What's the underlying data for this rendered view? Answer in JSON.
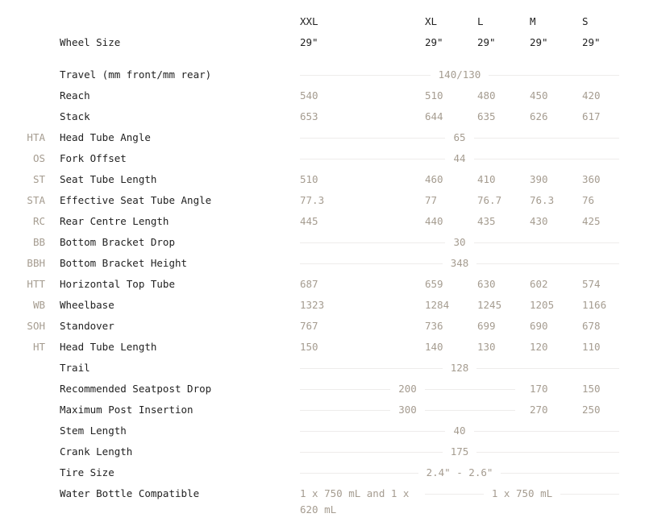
{
  "colors": {
    "label": "#222222",
    "value": "#a59c90",
    "rule": "#eeeceb"
  },
  "sizes": [
    "XXL",
    "XL",
    "L",
    "M",
    "S"
  ],
  "rows": [
    {
      "abbr": "",
      "label": "Wheel Size",
      "dark": true,
      "cells": [
        {
          "value": "29\"",
          "span": 1
        },
        {
          "value": "29\"",
          "span": 1
        },
        {
          "value": "29\"",
          "span": 1
        },
        {
          "value": "29\"",
          "span": 1
        },
        {
          "value": "29\"",
          "span": 1
        }
      ]
    },
    {
      "abbr": "",
      "label": "Travel (mm front/mm rear)",
      "cells": [
        {
          "value": "140/130",
          "span": 5
        }
      ]
    },
    {
      "abbr": "",
      "label": "Reach",
      "cells": [
        {
          "value": "540",
          "span": 1
        },
        {
          "value": "510",
          "span": 1
        },
        {
          "value": "480",
          "span": 1
        },
        {
          "value": "450",
          "span": 1
        },
        {
          "value": "420",
          "span": 1
        }
      ]
    },
    {
      "abbr": "",
      "label": "Stack",
      "cells": [
        {
          "value": "653",
          "span": 1
        },
        {
          "value": "644",
          "span": 1
        },
        {
          "value": "635",
          "span": 1
        },
        {
          "value": "626",
          "span": 1
        },
        {
          "value": "617",
          "span": 1
        }
      ]
    },
    {
      "abbr": "HTA",
      "label": "Head Tube Angle",
      "cells": [
        {
          "value": "65",
          "span": 5
        }
      ]
    },
    {
      "abbr": "OS",
      "label": "Fork Offset",
      "cells": [
        {
          "value": "44",
          "span": 5
        }
      ]
    },
    {
      "abbr": "ST",
      "label": "Seat Tube Length",
      "cells": [
        {
          "value": "510",
          "span": 1
        },
        {
          "value": "460",
          "span": 1
        },
        {
          "value": "410",
          "span": 1
        },
        {
          "value": "390",
          "span": 1
        },
        {
          "value": "360",
          "span": 1
        }
      ]
    },
    {
      "abbr": "STA",
      "label": "Effective Seat Tube Angle",
      "cells": [
        {
          "value": "77.3",
          "span": 1
        },
        {
          "value": "77",
          "span": 1
        },
        {
          "value": "76.7",
          "span": 1
        },
        {
          "value": "76.3",
          "span": 1
        },
        {
          "value": "76",
          "span": 1
        }
      ]
    },
    {
      "abbr": "RC",
      "label": "Rear Centre Length",
      "cells": [
        {
          "value": "445",
          "span": 1
        },
        {
          "value": "440",
          "span": 1
        },
        {
          "value": "435",
          "span": 1
        },
        {
          "value": "430",
          "span": 1
        },
        {
          "value": "425",
          "span": 1
        }
      ]
    },
    {
      "abbr": "BB",
      "label": "Bottom Bracket Drop",
      "cells": [
        {
          "value": "30",
          "span": 5
        }
      ]
    },
    {
      "abbr": "BBH",
      "label": "Bottom Bracket Height",
      "cells": [
        {
          "value": "348",
          "span": 5
        }
      ]
    },
    {
      "abbr": "HTT",
      "label": "Horizontal Top Tube",
      "cells": [
        {
          "value": "687",
          "span": 1
        },
        {
          "value": "659",
          "span": 1
        },
        {
          "value": "630",
          "span": 1
        },
        {
          "value": "602",
          "span": 1
        },
        {
          "value": "574",
          "span": 1
        }
      ]
    },
    {
      "abbr": "WB",
      "label": "Wheelbase",
      "cells": [
        {
          "value": "1323",
          "span": 1
        },
        {
          "value": "1284",
          "span": 1
        },
        {
          "value": "1245",
          "span": 1
        },
        {
          "value": "1205",
          "span": 1
        },
        {
          "value": "1166",
          "span": 1
        }
      ]
    },
    {
      "abbr": "SOH",
      "label": "Standover",
      "cells": [
        {
          "value": "767",
          "span": 1
        },
        {
          "value": "736",
          "span": 1
        },
        {
          "value": "699",
          "span": 1
        },
        {
          "value": "690",
          "span": 1
        },
        {
          "value": "678",
          "span": 1
        }
      ]
    },
    {
      "abbr": "HT",
      "label": "Head Tube Length",
      "cells": [
        {
          "value": "150",
          "span": 1
        },
        {
          "value": "140",
          "span": 1
        },
        {
          "value": "130",
          "span": 1
        },
        {
          "value": "120",
          "span": 1
        },
        {
          "value": "110",
          "span": 1
        }
      ]
    },
    {
      "abbr": "",
      "label": "Trail",
      "cells": [
        {
          "value": "128",
          "span": 5
        }
      ]
    },
    {
      "abbr": "",
      "label": "Recommended Seatpost Drop",
      "cells": [
        {
          "value": "200",
          "span": 3
        },
        {
          "value": "170",
          "span": 1
        },
        {
          "value": "150",
          "span": 1
        }
      ]
    },
    {
      "abbr": "",
      "label": "Maximum Post Insertion",
      "cells": [
        {
          "value": "300",
          "span": 3
        },
        {
          "value": "270",
          "span": 1
        },
        {
          "value": "250",
          "span": 1
        }
      ]
    },
    {
      "abbr": "",
      "label": "Stem Length",
      "cells": [
        {
          "value": "40",
          "span": 5
        }
      ]
    },
    {
      "abbr": "",
      "label": "Crank Length",
      "cells": [
        {
          "value": "175",
          "span": 5
        }
      ]
    },
    {
      "abbr": "",
      "label": "Tire Size",
      "cells": [
        {
          "value": "2.4\" - 2.6\"",
          "span": 5
        }
      ]
    },
    {
      "abbr": "",
      "label": "Water Bottle Compatible",
      "cells": [
        {
          "value": "1 x 750 mL and 1 x 620 mL",
          "span": 1
        },
        {
          "value": "1 x 750 mL",
          "span": 4
        }
      ]
    }
  ]
}
